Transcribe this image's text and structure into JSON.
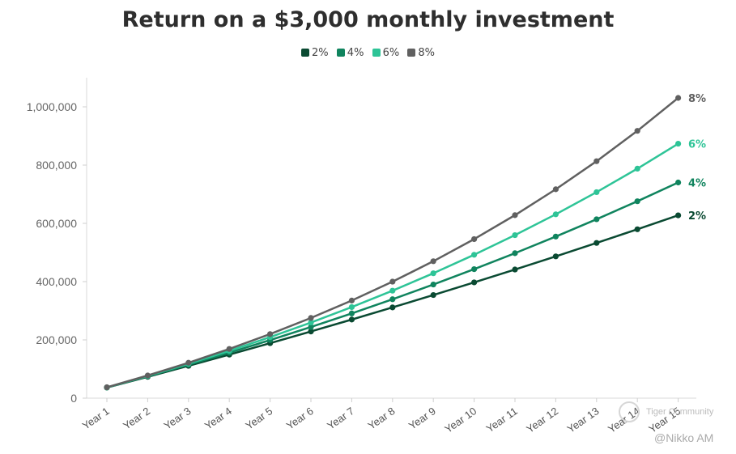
{
  "chart_data": {
    "type": "line",
    "title": "Return on a $3,000 monthly investment",
    "categories": [
      "Year 1",
      "Year 2",
      "Year 3",
      "Year 4",
      "Year 5",
      "Year 6",
      "Year 7",
      "Year 8",
      "Year 9",
      "Year 10",
      "Year 11",
      "Year 12",
      "Year 13",
      "Year 14",
      "Year 15"
    ],
    "series": [
      {
        "name": "2%",
        "color": "#0a4a32",
        "values": [
          36300,
          73300,
          111000,
          149500,
          188800,
          228900,
          269800,
          311500,
          354000,
          397400,
          441600,
          486700,
          532800,
          579700,
          627500
        ]
      },
      {
        "name": "4%",
        "color": "#10845e",
        "values": [
          36700,
          75000,
          114800,
          156200,
          199300,
          244200,
          290900,
          339500,
          390100,
          442800,
          497600,
          554700,
          614100,
          675900,
          740300
        ]
      },
      {
        "name": "6%",
        "color": "#2ec497",
        "values": [
          37000,
          76300,
          118100,
          162400,
          209500,
          259500,
          312600,
          368900,
          428700,
          492200,
          559600,
          631100,
          707100,
          787800,
          873400
        ]
      },
      {
        "name": "8%",
        "color": "#606060",
        "values": [
          37400,
          77800,
          121500,
          168900,
          220000,
          275300,
          335100,
          399900,
          470000,
          545900,
          628100,
          717000,
          813300,
          917600,
          1030600
        ]
      }
    ],
    "ylim": [
      0,
      1100000
    ],
    "yticks": [
      {
        "value": 0,
        "label": "0"
      },
      {
        "value": 200000,
        "label": "200,000"
      },
      {
        "value": 400000,
        "label": "400,000"
      },
      {
        "value": 600000,
        "label": "600,000"
      },
      {
        "value": 800000,
        "label": "800,000"
      },
      {
        "value": 1000000,
        "label": "1,000,000"
      }
    ],
    "grid": false,
    "legend": "top-center",
    "end_labels": true
  },
  "watermark": {
    "community": "Tiger Community",
    "handle": "@Nikko AM"
  }
}
